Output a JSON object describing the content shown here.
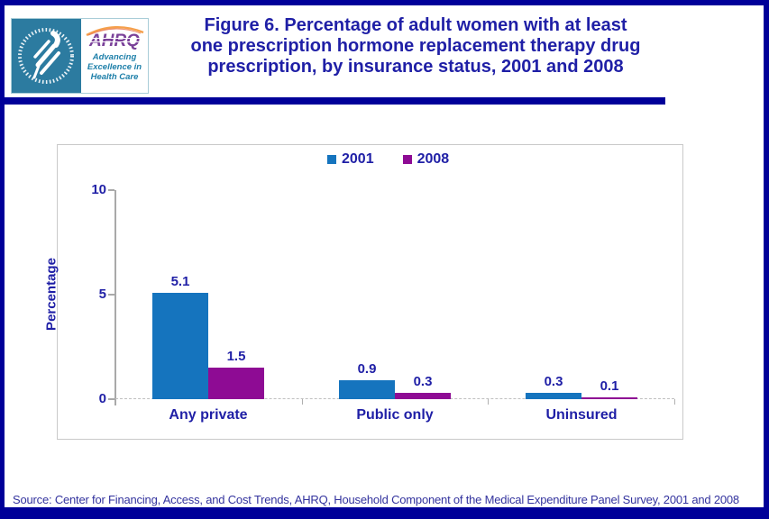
{
  "page": {
    "frame_color": "#000099",
    "background": "#ffffff",
    "text_navy": "#1f1fa6"
  },
  "header": {
    "hhs_logo": {
      "circle_text": "DEPARTMENT OF HEALTH & HUMAN SERVICES - USA"
    },
    "ahrq_logo": {
      "acronym": "AHRQ",
      "tagline_lines": [
        "Advancing",
        "Excellence in",
        "Health Care"
      ]
    },
    "title_lines": [
      "Figure 6. Percentage of adult women with at least",
      "one prescription hormone replacement therapy drug",
      "prescription, by insurance status, 2001 and 2008"
    ]
  },
  "chart_data": {
    "type": "bar",
    "title": "Figure 6. Percentage of adult women with at least one prescription hormone replacement therapy drug prescription, by insurance status, 2001 and 2008",
    "categories": [
      "Any private",
      "Public only",
      "Uninsured"
    ],
    "series": [
      {
        "name": "2001",
        "color": "#1574BE",
        "values": [
          5.1,
          0.9,
          0.3
        ]
      },
      {
        "name": "2008",
        "color": "#8E0B94",
        "values": [
          1.5,
          0.3,
          0.1
        ]
      }
    ],
    "xlabel": "",
    "ylabel": "Percentage",
    "yticks": [
      0,
      5,
      10
    ],
    "ylim": [
      0,
      10
    ],
    "grid": false,
    "legend_position": "top-center",
    "value_labels": true,
    "value_label_format": "0.0"
  },
  "footer": {
    "source": "Source: Center for Financing, Access, and Cost Trends, AHRQ, Household Component of the Medical Expenditure Panel Survey, 2001 and 2008"
  }
}
